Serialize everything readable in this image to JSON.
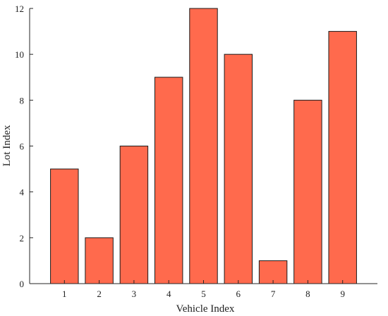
{
  "chart_data": {
    "type": "bar",
    "title": "",
    "xlabel": "Vehicle Index",
    "ylabel": "Lot Index",
    "categories": [
      "1",
      "2",
      "3",
      "4",
      "5",
      "6",
      "7",
      "8",
      "9"
    ],
    "values": [
      5,
      2,
      6,
      9,
      12,
      10,
      1,
      8,
      11
    ],
    "xlim": [
      0,
      10
    ],
    "ylim": [
      0,
      12
    ],
    "yticks": [
      0,
      2,
      4,
      6,
      8,
      10,
      12
    ],
    "grid": false,
    "legend": "none",
    "bar_color": "#ff6a4d",
    "bar_edge_color": "#1a1a1a"
  }
}
